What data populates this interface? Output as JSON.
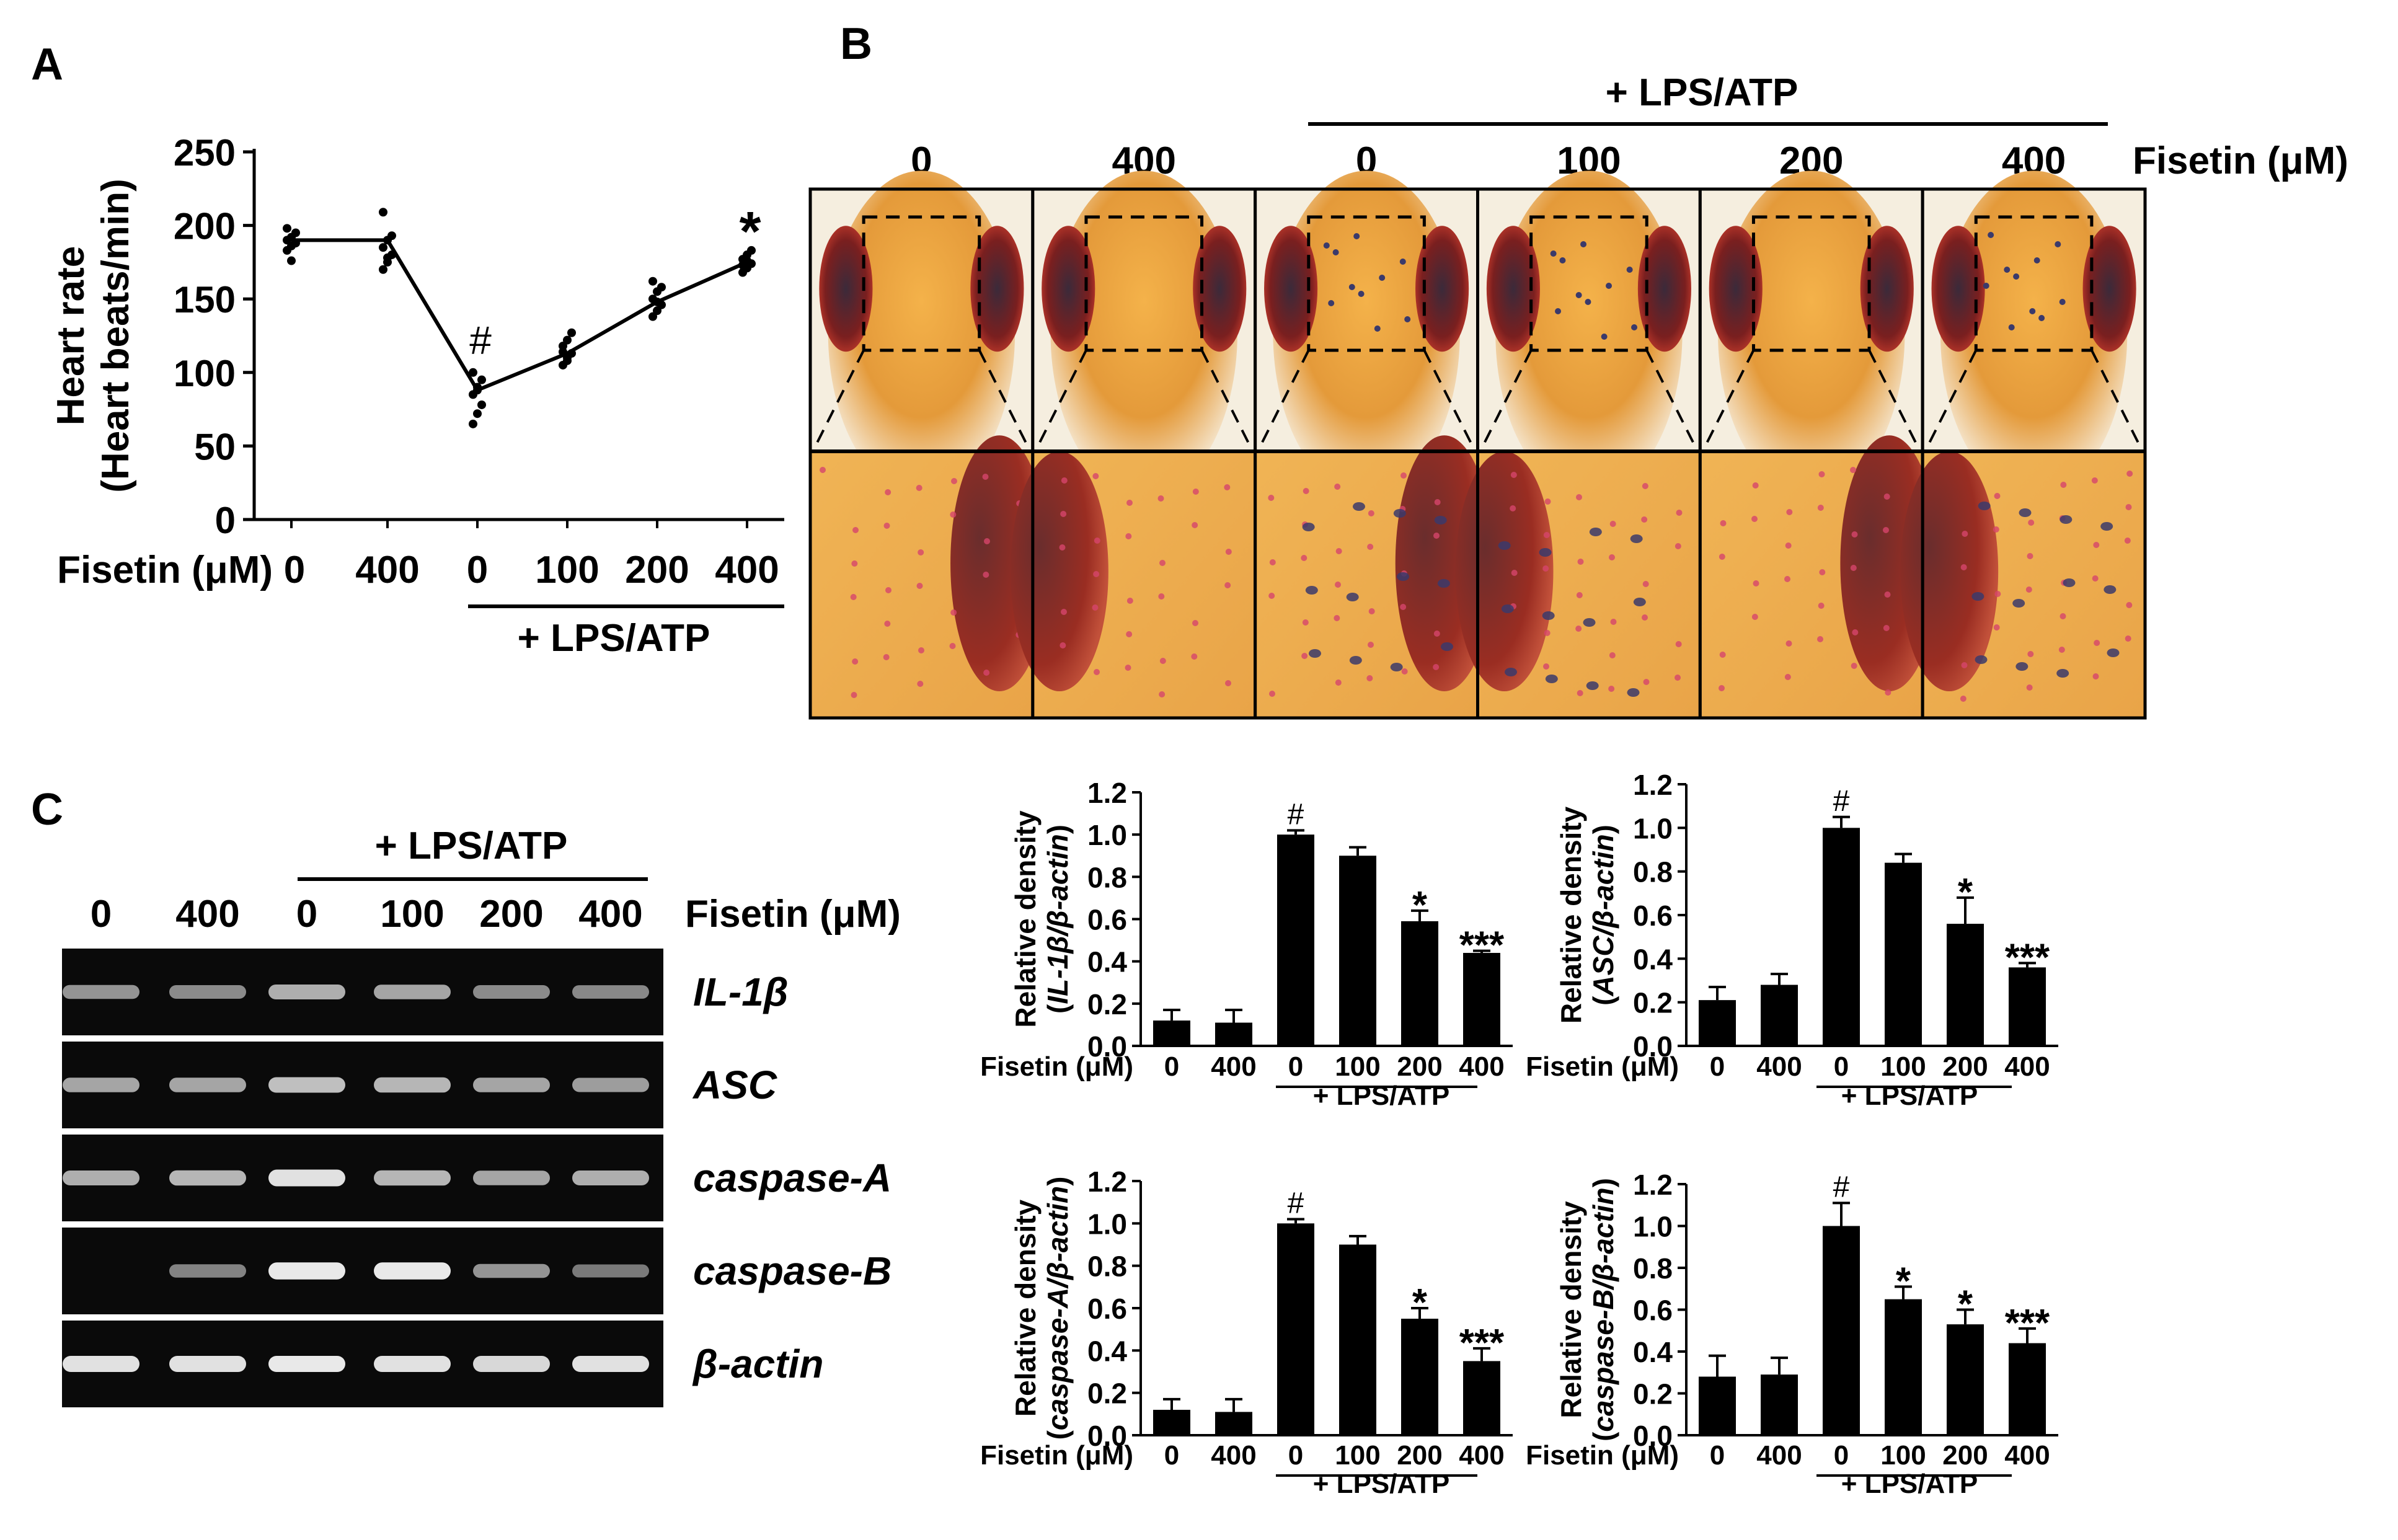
{
  "panel_labels": {
    "a": "A",
    "b": "B",
    "c": "C"
  },
  "fisetin_label": "Fisetin (μM)",
  "treatment_label": "+ LPS/ATP",
  "dose_labels": [
    "0",
    "400",
    "0",
    "100",
    "200",
    "400"
  ],
  "colors": {
    "ink": "#000000",
    "background": "#ffffff",
    "gel_bg": "#0a0a0a",
    "band": "#e9e9e9"
  },
  "panel_b": {
    "image_descriptions": [
      "zebrafish larva head, control, top view with dashed inset box",
      "zebrafish larva head, fisetin 400",
      "zebrafish larva head, LPS/ATP, dark stained spots",
      "zebrafish larva head, LPS/ATP + fisetin 100",
      "zebrafish larva head, LPS/ATP + fisetin 200",
      "zebrafish larva head, LPS/ATP + fisetin 400"
    ]
  },
  "panel_c": {
    "genes": [
      "IL-1β",
      "ASC",
      "caspase-A",
      "caspase-B",
      "β-actin"
    ],
    "band_intensity": [
      [
        0.45,
        0.4,
        0.6,
        0.55,
        0.4,
        0.38
      ],
      [
        0.55,
        0.55,
        0.7,
        0.65,
        0.55,
        0.5
      ],
      [
        0.6,
        0.65,
        0.9,
        0.65,
        0.55,
        0.6
      ],
      [
        0.0,
        0.35,
        0.95,
        0.95,
        0.45,
        0.3
      ],
      [
        0.9,
        0.9,
        0.95,
        0.9,
        0.85,
        0.9
      ]
    ]
  },
  "chart_data": [
    {
      "type": "line",
      "panel": "A",
      "categories": [
        "0",
        "400",
        "0",
        "100",
        "200",
        "400"
      ],
      "values": [
        190,
        190,
        88,
        113,
        148,
        175
      ],
      "replicate_points": [
        [
          183,
          186,
          188,
          190,
          192,
          195,
          198,
          176
        ],
        [
          170,
          175,
          180,
          185,
          190,
          193,
          209,
          178
        ],
        [
          65,
          72,
          78,
          85,
          90,
          95,
          100,
          88
        ],
        [
          105,
          110,
          113,
          118,
          122,
          127,
          114,
          108
        ],
        [
          138,
          142,
          146,
          150,
          155,
          158,
          162,
          148
        ],
        [
          168,
          171,
          174,
          177,
          180,
          183,
          173,
          176
        ]
      ],
      "annotations": [
        "",
        "",
        "#",
        "",
        "",
        "*"
      ],
      "ylabel_line1": "Heart rate",
      "ylabel_line2": "(Heart beats/min)",
      "ylim": [
        0,
        250
      ],
      "yticks": [
        0,
        50,
        100,
        150,
        200,
        250
      ],
      "xlabel": "Fisetin (μM)"
    },
    {
      "type": "bar",
      "panel": "C",
      "gene": "IL-1β",
      "ylabel_line1": "Relative density",
      "ylabel_ratio": "IL-1β/β-actin",
      "categories": [
        "0",
        "400",
        "0",
        "100",
        "200",
        "400"
      ],
      "values": [
        0.12,
        0.11,
        1.0,
        0.9,
        0.59,
        0.44
      ],
      "errors": [
        0.05,
        0.06,
        0.02,
        0.04,
        0.05,
        0.01
      ],
      "annotations": [
        "",
        "",
        "#",
        "",
        "*",
        "***"
      ],
      "ylim": [
        0,
        1.2
      ],
      "yticks": [
        "0.0",
        "0.2",
        "0.4",
        "0.6",
        "0.8",
        "1.0",
        "1.2"
      ]
    },
    {
      "type": "bar",
      "panel": "C",
      "gene": "ASC",
      "ylabel_line1": "Relative density",
      "ylabel_ratio": "ASC/β-actin",
      "categories": [
        "0",
        "400",
        "0",
        "100",
        "200",
        "400"
      ],
      "values": [
        0.21,
        0.28,
        1.0,
        0.84,
        0.56,
        0.36
      ],
      "errors": [
        0.06,
        0.05,
        0.05,
        0.04,
        0.12,
        0.02
      ],
      "annotations": [
        "",
        "",
        "#",
        "",
        "*",
        "***"
      ],
      "ylim": [
        0,
        1.2
      ],
      "yticks": [
        "0.0",
        "0.2",
        "0.4",
        "0.6",
        "0.8",
        "1.0",
        "1.2"
      ]
    },
    {
      "type": "bar",
      "panel": "C",
      "gene": "caspase-A",
      "ylabel_line1": "Relative density",
      "ylabel_ratio": "caspase-A/β-actin",
      "categories": [
        "0",
        "400",
        "0",
        "100",
        "200",
        "400"
      ],
      "values": [
        0.12,
        0.11,
        1.0,
        0.9,
        0.55,
        0.35
      ],
      "errors": [
        0.05,
        0.06,
        0.02,
        0.04,
        0.05,
        0.06
      ],
      "annotations": [
        "",
        "",
        "#",
        "",
        "*",
        "***"
      ],
      "ylim": [
        0,
        1.2
      ],
      "yticks": [
        "0.0",
        "0.2",
        "0.4",
        "0.6",
        "0.8",
        "1.0",
        "1.2"
      ]
    },
    {
      "type": "bar",
      "panel": "C",
      "gene": "caspase-B",
      "ylabel_line1": "Relative density",
      "ylabel_ratio": "caspase-B/β-actin",
      "categories": [
        "0",
        "400",
        "0",
        "100",
        "200",
        "400"
      ],
      "values": [
        0.28,
        0.29,
        1.0,
        0.65,
        0.53,
        0.44
      ],
      "errors": [
        0.1,
        0.08,
        0.11,
        0.06,
        0.07,
        0.07
      ],
      "annotations": [
        "",
        "",
        "#",
        "*",
        "*",
        "***"
      ],
      "ylim": [
        0,
        1.2
      ],
      "yticks": [
        "0.0",
        "0.2",
        "0.4",
        "0.6",
        "0.8",
        "1.0",
        "1.2"
      ]
    }
  ]
}
